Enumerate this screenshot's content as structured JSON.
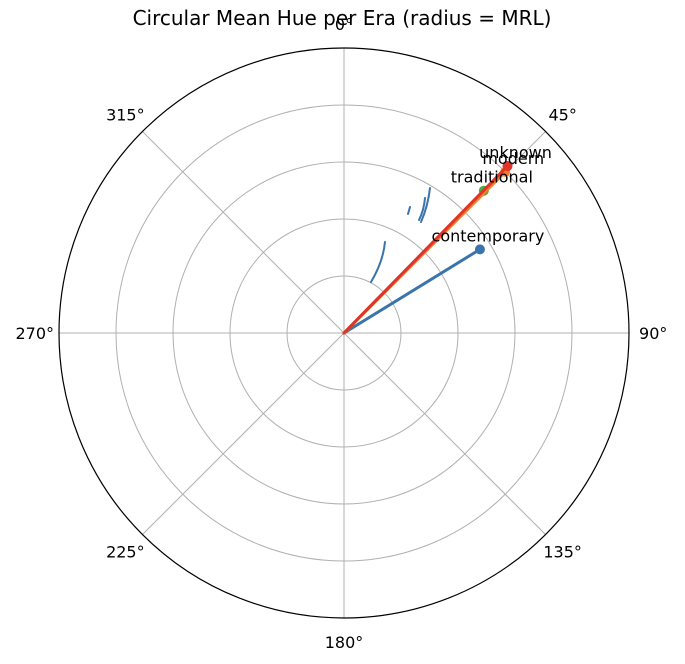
{
  "chart_data": {
    "type": "polar",
    "title": "Circular Mean Hue per Era (radius = MRL)",
    "theta_zero": "top",
    "theta_direction": "clockwise",
    "theta_ticks": [
      0,
      45,
      90,
      135,
      180,
      225,
      270,
      315
    ],
    "theta_tick_labels": [
      "0°",
      "45°",
      "90°",
      "135°",
      "180°",
      "225°",
      "270°",
      "315°"
    ],
    "r_max": 1.0,
    "r_grid": [
      0.2,
      0.4,
      0.6,
      0.8
    ],
    "grid": true,
    "series": [
      {
        "name": "contemporary",
        "angle_deg": 58.4,
        "radius": 0.56,
        "color": "#3a74ab"
      },
      {
        "name": "traditional",
        "angle_deg": 44.5,
        "radius": 0.7,
        "color": "#4cad43"
      },
      {
        "name": "modern",
        "angle_deg": 45.0,
        "radius": 0.8,
        "color": "#f27e2c"
      },
      {
        "name": "unknown",
        "angle_deg": 44.4,
        "radius": 0.82,
        "color": "#e0332a"
      }
    ]
  }
}
